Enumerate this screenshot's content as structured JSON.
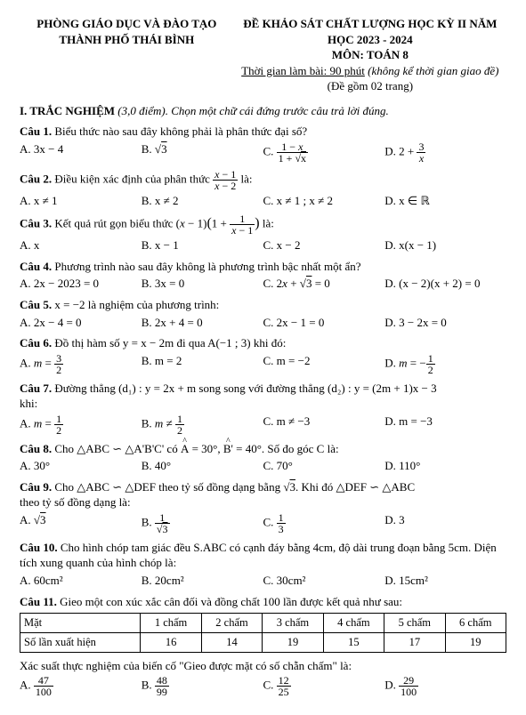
{
  "header": {
    "dept": "PHÒNG GIÁO DỤC VÀ ĐÀO TẠO",
    "city": "THÀNH PHỐ THÁI BÌNH",
    "exam": "ĐỀ KHẢO SÁT CHẤT LƯỢNG HỌC KỲ II NĂM HỌC 2023 - 2024",
    "subject": "MÔN: TOÁN 8",
    "time": "Thời gian làm bài: 90 phút",
    "timeNote": "(không kể thời gian giao đề)",
    "pages": "(Đề gồm 02 trang)"
  },
  "section1": {
    "title": "I. TRẮC NGHIỆM",
    "note": "(3,0 điểm). Chọn một chữ cái đứng trước câu trả lời đúng."
  },
  "q1": {
    "label": "Câu 1.",
    "text": "Biểu thức nào sau đây không phải là phân thức đại số?",
    "A": "3x − 4"
  },
  "q2": {
    "label": "Câu 2.",
    "text": "Điều kiện xác định của phân thức",
    "tail": "là:",
    "A": "x ≠ 1",
    "B": "x ≠ 2",
    "C": "x ≠ 1 ; x ≠ 2",
    "D": "x ∈ ℝ"
  },
  "q3": {
    "label": "Câu 3.",
    "text": "Kết quả rút gọn biểu thức",
    "tail": "là:",
    "A": "x",
    "B": "x − 1",
    "C": "x − 2",
    "D": "x(x − 1)"
  },
  "q4": {
    "label": "Câu 4.",
    "text": "Phương trình nào sau đây không là phương trình bậc nhất một ẩn?",
    "A": "2x − 2023 = 0",
    "B": "3x = 0",
    "D": "(x − 2)(x + 2) = 0"
  },
  "q5": {
    "label": "Câu 5.",
    "text": "x = −2 là nghiệm của phương trình:",
    "A": "2x − 4 = 0",
    "B": "2x + 4 = 0",
    "C": "2x − 1 = 0",
    "D": "3 − 2x = 0"
  },
  "q6": {
    "label": "Câu 6.",
    "text": "Đồ thị hàm số y = x − 2m đi qua A(−1 ; 3) khi đó:",
    "B": "m = 2",
    "C": "m = −2"
  },
  "q7": {
    "label": "Câu 7.",
    "text": "Đường thẳng (d₁) : y = 2x + m song song với đường thẳng (d₂) : y = (2m + 1)x − 3",
    "tail": "khi:",
    "C": "m ≠ −3",
    "D": "m = −3"
  },
  "q8": {
    "label": "Câu 8.",
    "text": "Cho △ABC ∽ △A'B'C' có",
    "mid": "= 30°,",
    "mid2": "= 40°. Số đo góc C là:",
    "A": "30°",
    "B": "40°",
    "C": "70°",
    "D": "110°"
  },
  "q9": {
    "label": "Câu 9.",
    "text1": "Cho △ABC ∽ △DEF theo tỷ số đồng dạng bằng",
    "text2": ". Khi đó △DEF ∽ △ABC",
    "text3": "theo tỷ số đồng dạng là:",
    "D": "3"
  },
  "q10": {
    "label": "Câu 10.",
    "text": "Cho hình chóp tam giác đều S.ABC có cạnh đáy bằng 4cm, độ dài trung đoạn bằng 5cm. Diện tích xung quanh của hình chóp là:",
    "A": "60cm²",
    "B": "20cm²",
    "C": "30cm²",
    "D": "15cm²"
  },
  "q11": {
    "label": "Câu 11.",
    "text": "Gieo một con xúc xắc cân đối và đồng chất 100 lần được kết quả như sau:",
    "table": {
      "h": [
        "Mặt",
        "1 chấm",
        "2 chấm",
        "3 chấm",
        "4 chấm",
        "5 chấm",
        "6 chấm"
      ],
      "r": [
        "Số lần xuất hiện",
        "16",
        "14",
        "19",
        "15",
        "17",
        "19"
      ]
    },
    "tail": "Xác suất thực nghiệm của biến cố \"Gieo được mặt có số chẵn chấm\" là:"
  }
}
